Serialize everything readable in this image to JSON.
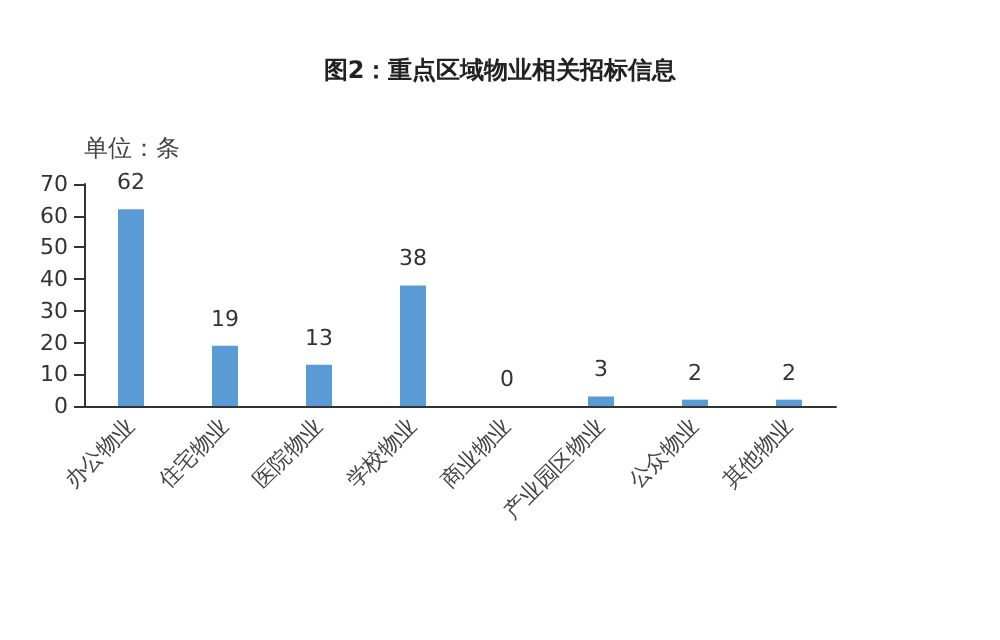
{
  "chart_data": {
    "type": "bar",
    "title": "图2：重点区域物业相关招标信息",
    "ylabel": "单位：条",
    "categories": [
      "办公物业",
      "住宅物业",
      "医院物业",
      "学校物业",
      "商业物业",
      "产业园区物业",
      "公众物业",
      "其他物业"
    ],
    "values": [
      62,
      19,
      13,
      38,
      0,
      3,
      2,
      2
    ],
    "color": "#5b9bd5",
    "ylim": [
      0,
      70
    ],
    "yticks": [
      0,
      10,
      20,
      30,
      40,
      50,
      60,
      70
    ],
    "grid": false,
    "data_labels": true
  }
}
